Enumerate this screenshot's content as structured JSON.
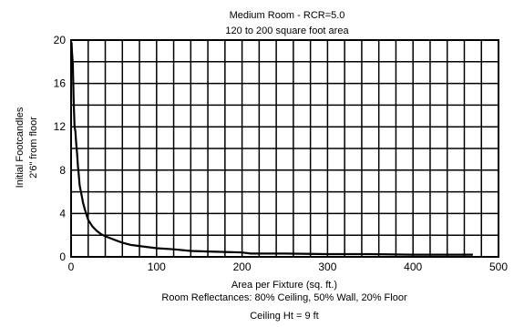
{
  "chart_data": {
    "type": "line",
    "title": "Medium Room - RCR=5.0",
    "subtitle": "120 to 200 square foot area",
    "xlabel": "Area per Fixture (sq. ft.)",
    "ylabel": "Initial Footcandles",
    "ylabel2": "2'6\" from floor",
    "notes": [
      "Room Reflectances: 80% Ceiling, 50% Wall, 20% Floor",
      "Ceiling Ht = 9 ft"
    ],
    "xlim": [
      0,
      500
    ],
    "ylim": [
      0,
      20
    ],
    "x_ticks": [
      "0",
      "100",
      "200",
      "300",
      "400",
      "500"
    ],
    "y_ticks": [
      "0",
      "4",
      "8",
      "12",
      "16",
      "20"
    ],
    "grid": true,
    "grid_x_step": 20,
    "grid_y_step": 2,
    "series": [
      {
        "values": [
          [
            0.5,
            19.8
          ],
          [
            1,
            19
          ],
          [
            2,
            17.8
          ],
          [
            3,
            14.5
          ],
          [
            4,
            12
          ],
          [
            5,
            11.6
          ],
          [
            6,
            10.5
          ],
          [
            7,
            9.5
          ],
          [
            8,
            8.4
          ],
          [
            9,
            7.6
          ],
          [
            10,
            6.6
          ],
          [
            12,
            5.8
          ],
          [
            14,
            5.0
          ],
          [
            16,
            4.4
          ],
          [
            18,
            3.9
          ],
          [
            20,
            3.4
          ],
          [
            25,
            2.8
          ],
          [
            30,
            2.4
          ],
          [
            35,
            2.1
          ],
          [
            40,
            1.9
          ],
          [
            50,
            1.6
          ],
          [
            60,
            1.3
          ],
          [
            70,
            1.1
          ],
          [
            80,
            1.0
          ],
          [
            100,
            0.8
          ],
          [
            120,
            0.7
          ],
          [
            140,
            0.55
          ],
          [
            160,
            0.5
          ],
          [
            180,
            0.45
          ],
          [
            200,
            0.4
          ],
          [
            210,
            0.3
          ],
          [
            250,
            0.3
          ],
          [
            300,
            0.25
          ],
          [
            350,
            0.25
          ],
          [
            400,
            0.2
          ],
          [
            470,
            0.2
          ]
        ]
      }
    ]
  }
}
